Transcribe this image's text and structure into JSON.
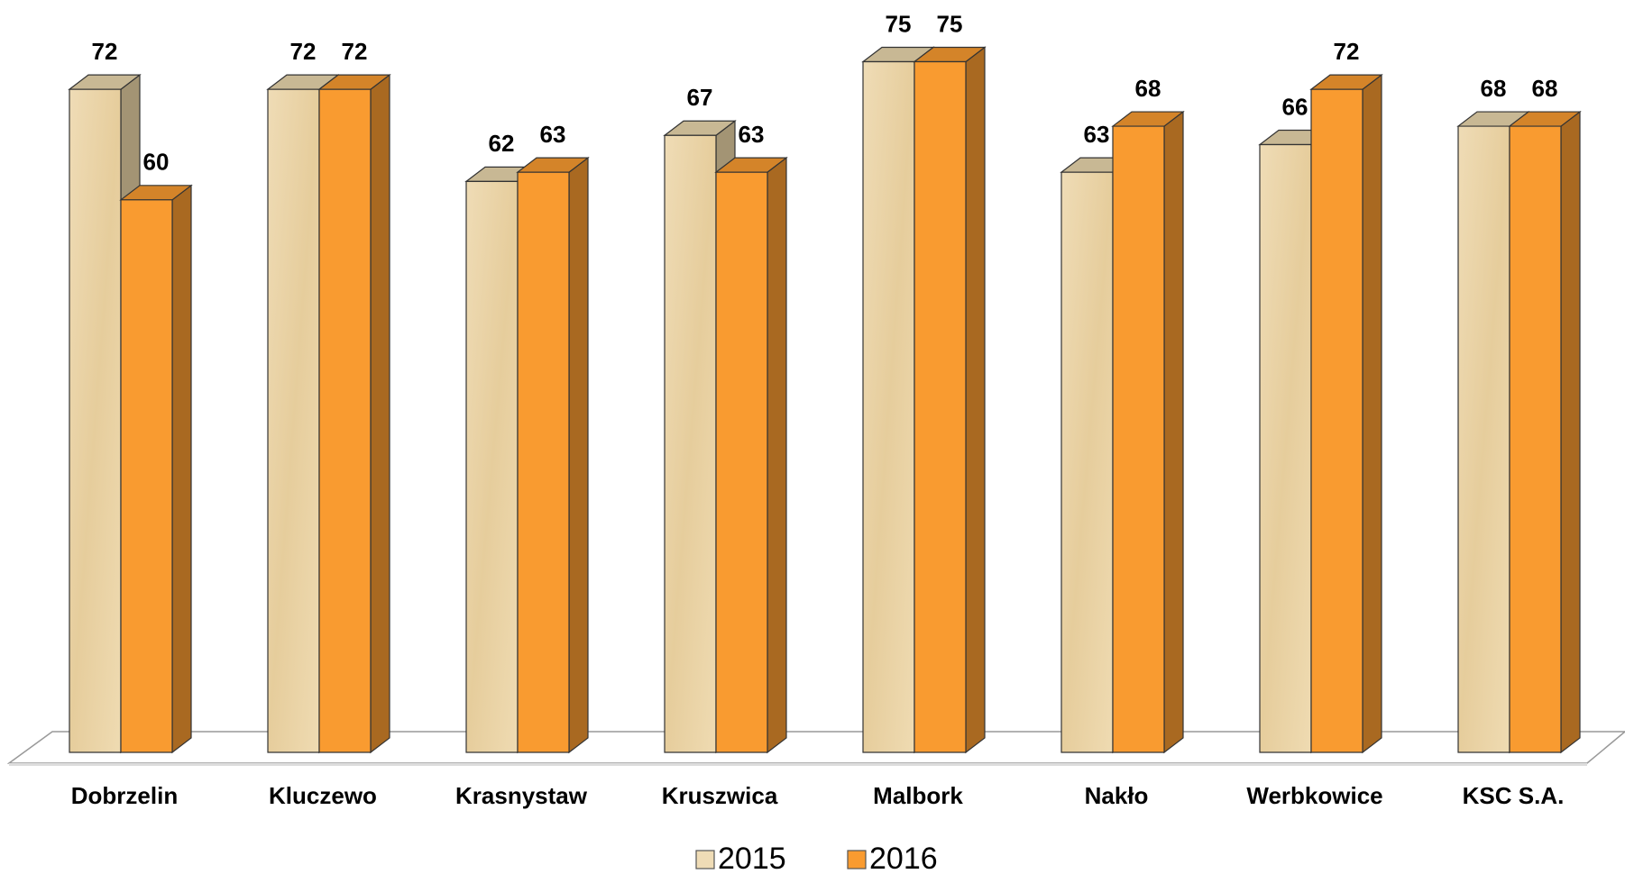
{
  "chart_data": {
    "type": "bar",
    "categories": [
      "Dobrzelin",
      "Kluczewo",
      "Krasnystaw",
      "Kruszwica",
      "Malbork",
      "Nakło",
      "Werbkowice",
      "KSC S.A."
    ],
    "series": [
      {
        "name": "2015",
        "color": "#ead3a6",
        "values": [
          72,
          72,
          62,
          67,
          75,
          63,
          66,
          68
        ]
      },
      {
        "name": "2016",
        "color": "#f99b30",
        "values": [
          60,
          72,
          63,
          63,
          75,
          68,
          72,
          68
        ]
      }
    ]
  }
}
